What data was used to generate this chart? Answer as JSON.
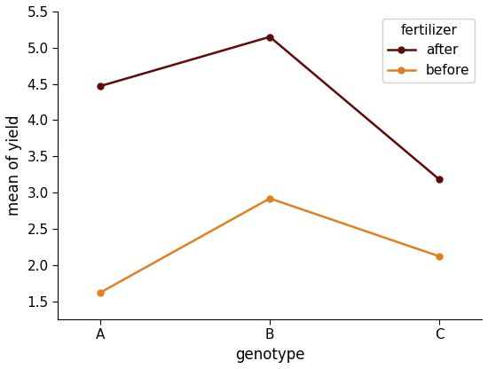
{
  "x_labels": [
    "A",
    "B",
    "C"
  ],
  "x_values": [
    0,
    1,
    2
  ],
  "series": [
    {
      "label": "after",
      "values": [
        4.47,
        5.15,
        3.18
      ],
      "color": "#5c0a0a",
      "marker": "o"
    },
    {
      "label": "before",
      "values": [
        1.62,
        2.92,
        2.12
      ],
      "color": "#e08020",
      "marker": "o"
    }
  ],
  "xlabel": "genotype",
  "ylabel": "mean of yield",
  "ylim": [
    1.25,
    5.5
  ],
  "yticks": [
    1.5,
    2.0,
    2.5,
    3.0,
    3.5,
    4.0,
    4.5,
    5.0,
    5.5
  ],
  "legend_title": "fertilizer",
  "legend_loc": "upper right",
  "background_color": "#ffffff",
  "label_fontsize": 12,
  "tick_fontsize": 11,
  "legend_fontsize": 11,
  "linewidth": 1.8,
  "markersize": 5
}
